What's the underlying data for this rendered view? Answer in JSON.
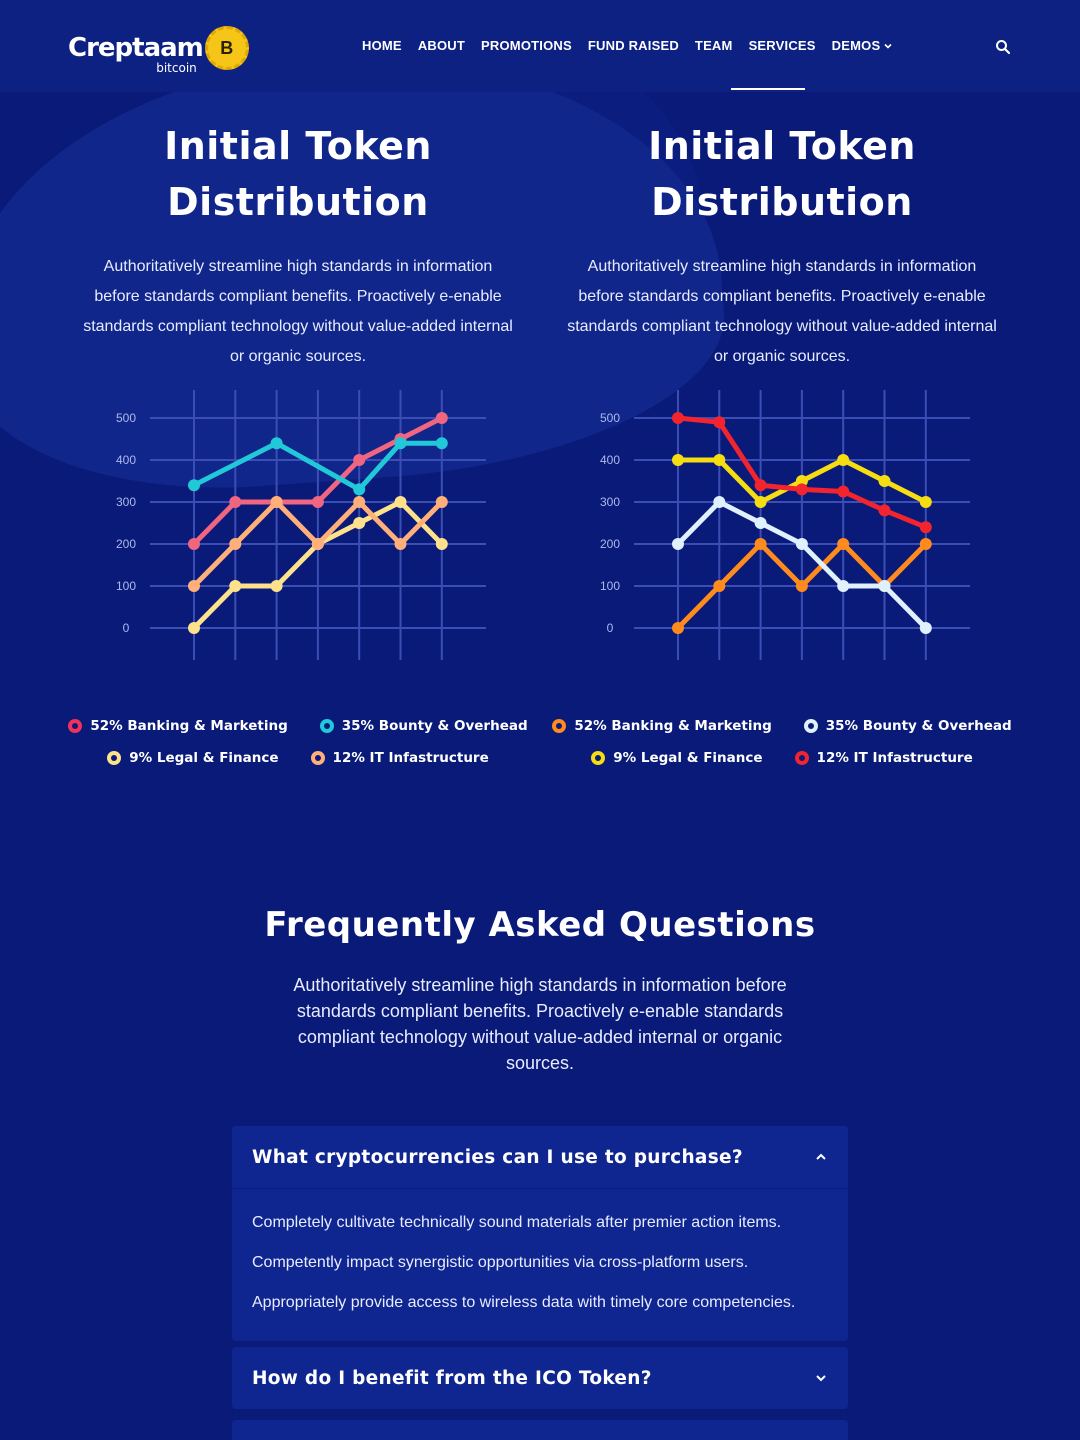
{
  "header": {
    "logo_text": "Creptaam",
    "logo_sub": "bitcoin",
    "logo_coin": "B",
    "nav": [
      {
        "label": "HOME"
      },
      {
        "label": "ABOUT"
      },
      {
        "label": "PROMOTIONS"
      },
      {
        "label": "FUND RAISED"
      },
      {
        "label": "TEAM"
      },
      {
        "label": "SERVICES"
      },
      {
        "label": "DEMOS"
      }
    ],
    "icons": {
      "search": "search-icon",
      "dropdown": "chevron-down-icon"
    }
  },
  "charts": [
    {
      "title_line1": "Initial Token",
      "title_line2": "Distribution",
      "description": "Authoritatively streamline high standards in information before standards compliant benefits. Proactively e-enable standards compliant technology without value-added internal or organic sources.",
      "legend": [
        {
          "label": "52% Banking & Marketing",
          "color": "#f0315a"
        },
        {
          "label": "35% Bounty & Overhead",
          "color": "#21c8d8"
        },
        {
          "label": "9% Legal & Finance",
          "color": "#fde28b"
        },
        {
          "label": "12% IT Infastructure",
          "color": "#ffb07a"
        }
      ]
    },
    {
      "title_line1": "Initial Token",
      "title_line2": "Distribution",
      "description": "Authoritatively streamline high standards in information before standards compliant benefits. Proactively e-enable standards compliant technology without value-added internal or organic sources.",
      "legend": [
        {
          "label": "52% Banking & Marketing",
          "color": "#ff8a1e"
        },
        {
          "label": "35% Bounty & Overhead",
          "color": "#dff0ff"
        },
        {
          "label": "9% Legal & Finance",
          "color": "#f6dd12"
        },
        {
          "label": "12% IT Infastructure",
          "color": "#f2242e"
        }
      ]
    }
  ],
  "chart_data": [
    {
      "type": "line",
      "x": [
        1,
        2,
        3,
        4,
        5,
        6,
        7
      ],
      "yticks": [
        "0",
        "100",
        "200",
        "300",
        "400",
        "500"
      ],
      "ylim": [
        0,
        500
      ],
      "grid": true,
      "series": [
        {
          "name": "52% Banking & Marketing",
          "color": "#f0657f",
          "values": [
            200,
            300,
            300,
            300,
            400,
            450,
            500
          ]
        },
        {
          "name": "35% Bounty & Overhead",
          "color": "#21c8d8",
          "values": [
            340,
            null,
            440,
            null,
            330,
            440,
            440
          ]
        },
        {
          "name": "9% Legal & Finance",
          "color": "#fde28b",
          "values": [
            0,
            100,
            100,
            200,
            250,
            300,
            200
          ]
        },
        {
          "name": "12% IT Infastructure",
          "color": "#ffb07a",
          "values": [
            100,
            200,
            300,
            200,
            300,
            200,
            300
          ]
        }
      ]
    },
    {
      "type": "line",
      "x": [
        1,
        2,
        3,
        4,
        5,
        6,
        7
      ],
      "yticks": [
        "0",
        "100",
        "200",
        "300",
        "400",
        "500"
      ],
      "ylim": [
        0,
        500
      ],
      "grid": true,
      "series": [
        {
          "name": "52% Banking & Marketing",
          "color": "#ff8a1e",
          "values": [
            0,
            100,
            200,
            100,
            200,
            100,
            200
          ]
        },
        {
          "name": "35% Bounty & Overhead",
          "color": "#dff0ff",
          "values": [
            200,
            300,
            250,
            200,
            100,
            100,
            0
          ]
        },
        {
          "name": "9% Legal & Finance",
          "color": "#f6dd12",
          "values": [
            400,
            400,
            300,
            350,
            400,
            350,
            300
          ]
        },
        {
          "name": "12% IT Infastructure",
          "color": "#f2242e",
          "values": [
            500,
            490,
            340,
            330,
            325,
            280,
            240
          ]
        }
      ]
    }
  ],
  "faq": {
    "title": "Frequently Asked Questions",
    "description": "Authoritatively streamline high standards in information before standards compliant benefits. Proactively e-enable standards compliant technology without value-added internal or organic sources.",
    "items": [
      {
        "question": "What cryptocurrencies can I use to purchase?",
        "expanded": true,
        "answers": [
          "Completely cultivate technically sound materials after premier action items.",
          "Competently impact synergistic opportunities via cross-platform users.",
          "Appropriately provide access to wireless data with timely core competencies."
        ]
      },
      {
        "question": "How do I benefit from the ICO Token?",
        "expanded": false
      }
    ]
  }
}
